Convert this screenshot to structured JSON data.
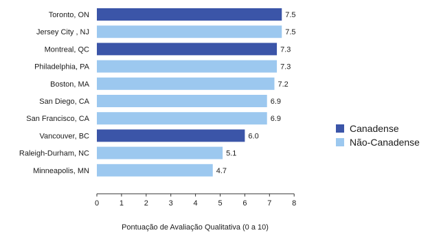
{
  "chart_data": {
    "type": "bar",
    "orientation": "horizontal",
    "categories": [
      "Toronto, ON",
      "Jersey City , NJ",
      "Montreal, QC",
      "Philadelphia, PA",
      "Boston, MA",
      "San Diego, CA",
      "San Francisco, CA",
      "Vancouver, BC",
      "Raleigh-Durham, NC",
      "Minneapolis, MN"
    ],
    "values": [
      7.5,
      7.5,
      7.3,
      7.3,
      7.2,
      6.9,
      6.9,
      6.0,
      5.1,
      4.7
    ],
    "value_labels": [
      "7.5",
      "7.5",
      "7.3",
      "7.3",
      "7.2",
      "6.9",
      "6.9",
      "6.0",
      "5.1",
      "4.7"
    ],
    "groups": [
      "Canadense",
      "Não-Canadense",
      "Canadense",
      "Não-Canadense",
      "Não-Canadense",
      "Não-Canadense",
      "Não-Canadense",
      "Canadense",
      "Não-Canadense",
      "Não-Canadense"
    ],
    "legend": [
      {
        "name": "Canadense",
        "color": "#3b55a8"
      },
      {
        "name": "Não-Canadense",
        "color": "#9cc8ef"
      }
    ],
    "legend_position": "right",
    "xlabel": "Pontuação de Avaliação Qualitativa (0 a 10)",
    "ylabel": "",
    "xlim": [
      0,
      8
    ],
    "xticks": [
      "0",
      "1",
      "2",
      "3",
      "4",
      "5",
      "6",
      "7",
      "8"
    ],
    "grid": false
  }
}
